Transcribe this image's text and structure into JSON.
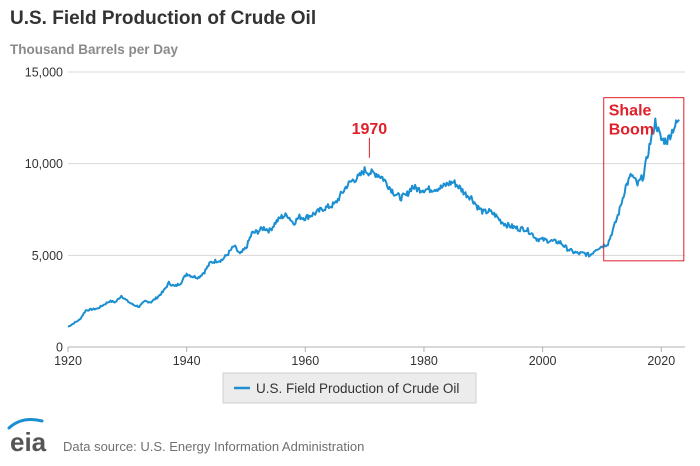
{
  "chart_data": {
    "type": "line",
    "title": "U.S. Field Production of Crude Oil",
    "ylabel": "Thousand Barrels per Day",
    "xlabel": "",
    "xlim": [
      1920,
      2023
    ],
    "ylim": [
      0,
      15000
    ],
    "x_ticks": [
      1920,
      1940,
      1960,
      1980,
      2000,
      2020
    ],
    "x_tick_labels": [
      "1920",
      "1940",
      "1960",
      "1980",
      "2000",
      "2020"
    ],
    "y_ticks": [
      0,
      5000,
      10000,
      15000
    ],
    "y_tick_labels": [
      "0",
      "5,000",
      "10,000",
      "15,000"
    ],
    "grid": true,
    "legend_position": "bottom-center",
    "series": [
      {
        "name": "U.S. Field Production of Crude Oil",
        "color": "#1b8fd1",
        "x": [
          1920,
          1922,
          1923,
          1925,
          1927,
          1928,
          1929,
          1930,
          1931,
          1932,
          1933,
          1934,
          1935,
          1936,
          1937,
          1938,
          1939,
          1940,
          1941,
          1942,
          1943,
          1944,
          1945,
          1946,
          1947,
          1948,
          1949,
          1950,
          1951,
          1952,
          1953,
          1954,
          1955,
          1956,
          1957,
          1958,
          1959,
          1960,
          1961,
          1962,
          1963,
          1964,
          1965,
          1966,
          1967,
          1968,
          1969,
          1970,
          1971,
          1972,
          1973,
          1974,
          1975,
          1976,
          1977,
          1978,
          1979,
          1980,
          1981,
          1982,
          1983,
          1984,
          1985,
          1986,
          1987,
          1988,
          1989,
          1990,
          1991,
          1992,
          1993,
          1994,
          1995,
          1996,
          1997,
          1998,
          1999,
          2000,
          2001,
          2002,
          2003,
          2004,
          2005,
          2006,
          2007,
          2008,
          2009,
          2010,
          2011,
          2012,
          2013,
          2014,
          2015,
          2016,
          2017,
          2018,
          2019,
          2020,
          2021,
          2022,
          2023
        ],
        "values": [
          1100,
          1500,
          2000,
          2100,
          2500,
          2450,
          2800,
          2500,
          2300,
          2200,
          2500,
          2450,
          2700,
          3000,
          3500,
          3300,
          3500,
          4000,
          3850,
          3800,
          4100,
          4600,
          4700,
          4750,
          5100,
          5500,
          5050,
          5400,
          6200,
          6300,
          6500,
          6350,
          6800,
          7100,
          7200,
          6750,
          7100,
          7050,
          7200,
          7350,
          7550,
          7650,
          7800,
          8300,
          8800,
          9100,
          9250,
          9650,
          9500,
          9450,
          9250,
          8800,
          8400,
          8150,
          8250,
          8750,
          8600,
          8600,
          8600,
          8650,
          8700,
          8900,
          9000,
          8700,
          8350,
          8150,
          7650,
          7350,
          7400,
          7200,
          6850,
          6650,
          6550,
          6450,
          6450,
          6250,
          5900,
          5850,
          5800,
          5750,
          5700,
          5400,
          5200,
          5100,
          5100,
          5000,
          5350,
          5500,
          5650,
          6500,
          7500,
          8750,
          9400,
          8850,
          9350,
          10950,
          12300,
          11300,
          11250,
          11900,
          12400
        ],
        "annotations": [
          {
            "text": "1970",
            "x": 1970.8,
            "y": 10100,
            "style": "leader-line"
          },
          {
            "text": "Shale",
            "x_range": [
              2010.3,
              2023.8
            ],
            "y_range": [
              4700,
              13600
            ],
            "style": "box",
            "label2": "Boom"
          }
        ]
      }
    ]
  },
  "legend": {
    "label": "U.S. Field Production of Crude Oil"
  },
  "footer": {
    "source": "Data source: U.S. Energy Information Administration",
    "logo": "eia"
  }
}
